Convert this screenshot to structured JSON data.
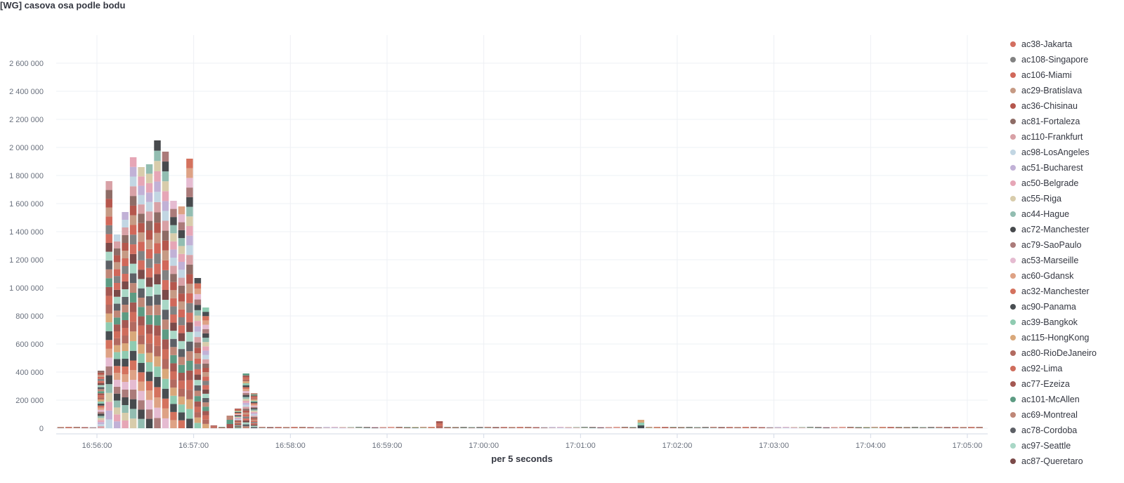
{
  "panel": {
    "title": "[WG] casova osa podle bodu"
  },
  "colors": {
    "grid": "#eef0f4",
    "axis_text": "#69707d",
    "baseline": "#d3dae6"
  },
  "chart_data": {
    "type": "bar",
    "stacked": true,
    "title": "[WG] casova osa podle bodu",
    "xlabel": "per 5 seconds",
    "ylabel": "",
    "ylim": [
      0,
      2800000
    ],
    "y_ticks": [
      0,
      200000,
      400000,
      600000,
      800000,
      1000000,
      1200000,
      1400000,
      1600000,
      1800000,
      2000000,
      2200000,
      2400000,
      2600000
    ],
    "y_tick_labels": [
      "0",
      "200 000",
      "400 000",
      "600 000",
      "800 000",
      "1 000 000",
      "1 200 000",
      "1 400 000",
      "1 600 000",
      "1 800 000",
      "2 000 000",
      "2 200 000",
      "2 400 000",
      "2 600 000"
    ],
    "x_ticks": [
      "16:56:00",
      "16:57:00",
      "16:58:00",
      "16:59:00",
      "17:00:00",
      "17:01:00",
      "17:02:00",
      "17:03:00",
      "17:04:00",
      "17:05:00"
    ],
    "x_interval": "5 seconds",
    "x_start": "16:55:30",
    "grid": true,
    "legend_position": "right",
    "totals": [
      10000,
      10000,
      10000,
      10000,
      10000,
      10000,
      410000,
      1760000,
      1380000,
      1540000,
      1930000,
      1860000,
      1880000,
      2050000,
      1970000,
      1620000,
      1580000,
      1920000,
      1070000,
      860000,
      20000,
      10000,
      90000,
      140000,
      390000,
      250000,
      10000,
      10000,
      10000,
      10000,
      10000,
      10000,
      10000,
      10000,
      10000,
      10000,
      10000,
      10000,
      10000,
      10000,
      10000,
      10000,
      10000,
      10000,
      10000,
      10000,
      10000,
      10000,
      50000,
      10000,
      10000,
      10000,
      10000,
      10000,
      10000,
      10000,
      10000,
      10000,
      10000,
      10000,
      10000,
      10000,
      10000,
      10000,
      10000,
      10000,
      10000,
      10000,
      10000,
      10000,
      10000,
      10000,
      10000,
      60000,
      10000,
      10000,
      10000,
      10000,
      10000,
      10000,
      10000,
      10000,
      10000,
      10000,
      10000,
      10000,
      10000,
      10000,
      10000,
      10000,
      10000,
      10000,
      10000,
      10000,
      10000,
      10000,
      10000,
      10000,
      10000,
      10000,
      10000,
      10000,
      10000,
      10000,
      10000,
      10000,
      10000,
      10000,
      10000,
      10000,
      10000,
      10000,
      10000,
      10000,
      10000,
      10000,
      10000,
      10000,
      10000,
      10000,
      10000,
      10000,
      10000,
      10000,
      10000,
      10000,
      10000,
      10000,
      10000,
      10000,
      10000,
      10000,
      10000,
      10000,
      10000,
      10000,
      10000,
      10000,
      10000,
      10000,
      10000,
      10000,
      10000,
      10000,
      10000,
      10000,
      10000,
      10000,
      10000,
      10000,
      10000,
      10000,
      10000,
      10000,
      10000,
      10000,
      10000,
      10000,
      10000,
      10000,
      10000,
      10000,
      10000,
      10000,
      10000,
      10000,
      10000,
      10000,
      10000,
      10000,
      10000,
      10000,
      10000,
      10000,
      10000,
      10000,
      10000,
      10000,
      10000,
      10000,
      10000,
      10000
    ],
    "totals_note_removed": true,
    "bars": [
      {
        "t": "16:55:30",
        "v": 10000
      }
    ],
    "series": [
      {
        "name": "ac38-Jakarta",
        "color": "#d36e60"
      },
      {
        "name": "ac108-Singapore",
        "color": "#828282"
      },
      {
        "name": "ac106-Miami",
        "color": "#d1685a"
      },
      {
        "name": "ac29-Bratislava",
        "color": "#c69a84"
      },
      {
        "name": "ac36-Chisinau",
        "color": "#b5574d"
      },
      {
        "name": "ac81-Fortaleza",
        "color": "#8e6c66"
      },
      {
        "name": "ac110-Frankfurt",
        "color": "#d8a1a6"
      },
      {
        "name": "ac98-LosAngeles",
        "color": "#c2d6e3"
      },
      {
        "name": "ac51-Bucharest",
        "color": "#c1b1d6"
      },
      {
        "name": "ac50-Belgrade",
        "color": "#e6a6b6"
      },
      {
        "name": "ac55-Riga",
        "color": "#d8ccab"
      },
      {
        "name": "ac44-Hague",
        "color": "#92bdb1"
      },
      {
        "name": "ac72-Manchester",
        "color": "#474a4d"
      },
      {
        "name": "ac79-SaoPaulo",
        "color": "#ab7b7a"
      },
      {
        "name": "ac53-Marseille",
        "color": "#e5bbd1"
      },
      {
        "name": "ac60-Gdansk",
        "color": "#dea285"
      },
      {
        "name": "ac32-Manchester",
        "color": "#d4725e"
      },
      {
        "name": "ac90-Panama",
        "color": "#494e52"
      },
      {
        "name": "ac39-Bangkok",
        "color": "#8fcbb1"
      },
      {
        "name": "ac115-HongKong",
        "color": "#d9a87a"
      },
      {
        "name": "ac80-RioDeJaneiro",
        "color": "#b26a60"
      },
      {
        "name": "ac92-Lima",
        "color": "#cf6d5c"
      },
      {
        "name": "ac77-Ezeiza",
        "color": "#a45852"
      },
      {
        "name": "ac101-McAllen",
        "color": "#5d9b83"
      },
      {
        "name": "ac69-Montreal",
        "color": "#bf8777"
      },
      {
        "name": "ac78-Cordoba",
        "color": "#5d6066"
      },
      {
        "name": "ac97-Seattle",
        "color": "#a9d7c6"
      },
      {
        "name": "ac87-Queretaro",
        "color": "#7b4a49"
      }
    ]
  }
}
